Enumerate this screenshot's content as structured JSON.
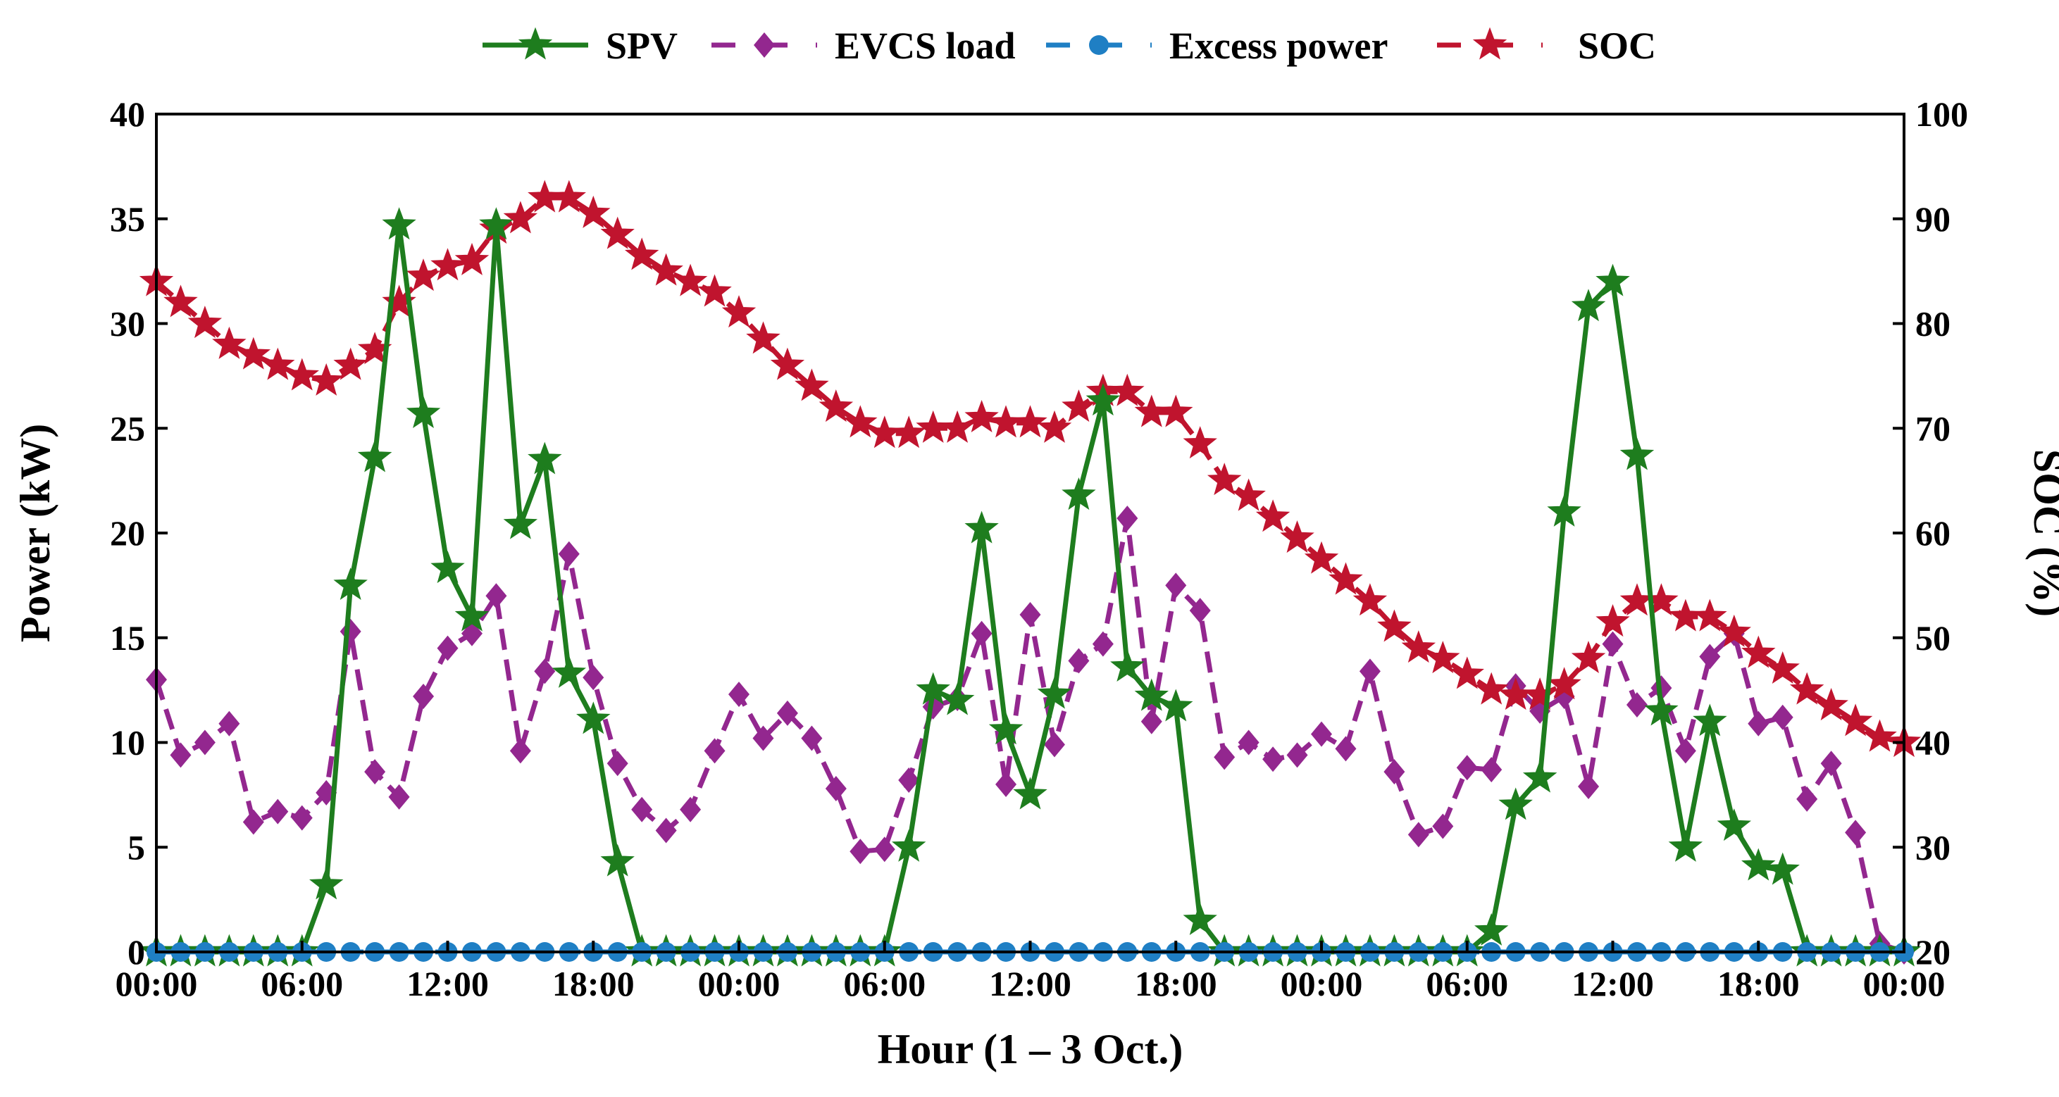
{
  "chart_data": {
    "type": "line",
    "title": "",
    "xlabel": "Hour (1 – 3 Oct.)",
    "ylabel": "Power (kW)",
    "y2label": "SOC (%)",
    "xlim": [
      0,
      72
    ],
    "ylim": [
      0,
      40
    ],
    "y2lim": [
      20,
      100
    ],
    "x_tick_labels": [
      "00:00",
      "06:00",
      "12:00",
      "18:00",
      "00:00",
      "06:00",
      "12:00",
      "18:00",
      "00:00",
      "06:00",
      "12:00",
      "18:00",
      "00:00"
    ],
    "x_tick_positions": [
      0,
      6,
      12,
      18,
      24,
      30,
      36,
      42,
      48,
      54,
      60,
      66,
      72
    ],
    "y_tick_labels": [
      "0",
      "5",
      "10",
      "15",
      "20",
      "25",
      "30",
      "35",
      "40"
    ],
    "y_tick_values": [
      0,
      5,
      10,
      15,
      20,
      25,
      30,
      35,
      40
    ],
    "y2_tick_labels": [
      "20",
      "30",
      "40",
      "50",
      "60",
      "70",
      "80",
      "90",
      "100"
    ],
    "y2_tick_values": [
      20,
      30,
      40,
      50,
      60,
      70,
      80,
      90,
      100
    ],
    "grid": false,
    "legend_position": "top-center",
    "x": [
      0,
      1,
      2,
      3,
      4,
      5,
      6,
      7,
      8,
      9,
      10,
      11,
      12,
      13,
      14,
      15,
      16,
      17,
      18,
      19,
      20,
      21,
      22,
      23,
      24,
      25,
      26,
      27,
      28,
      29,
      30,
      31,
      32,
      33,
      34,
      35,
      36,
      37,
      38,
      39,
      40,
      41,
      42,
      43,
      44,
      45,
      46,
      47,
      48,
      49,
      50,
      51,
      52,
      53,
      54,
      55,
      56,
      57,
      58,
      59,
      60,
      61,
      62,
      63,
      64,
      65,
      66,
      67,
      68,
      69,
      70,
      71,
      72
    ],
    "series": [
      {
        "name": "SPV",
        "axis": "left",
        "color": "#1e7d1e",
        "style": "solid",
        "marker": "star",
        "values": [
          0,
          0,
          0,
          0,
          0,
          0,
          0,
          3.2,
          17.5,
          23.6,
          34.7,
          25.7,
          18.3,
          16,
          34.7,
          20.4,
          23.5,
          13.3,
          11.1,
          4.3,
          0,
          0,
          0,
          0,
          0,
          0,
          0,
          0,
          0,
          0,
          0,
          5,
          12.5,
          12,
          20.2,
          10.6,
          7.5,
          12.3,
          21.8,
          26.3,
          13.6,
          12.2,
          11.7,
          1.5,
          0,
          0,
          0,
          0,
          0,
          0,
          0,
          0,
          0,
          0,
          0,
          1,
          7,
          8.3,
          21,
          30.8,
          32,
          23.7,
          11.5,
          5,
          11,
          6,
          4.1,
          3.9,
          0,
          0,
          0,
          0,
          0
        ]
      },
      {
        "name": "EVCS load",
        "axis": "left",
        "color": "#93278f",
        "style": "dashed",
        "marker": "diamond",
        "values": [
          13,
          9.4,
          10,
          10.9,
          6.2,
          6.7,
          6.4,
          7.6,
          15.3,
          8.6,
          7.4,
          12.2,
          14.5,
          15.2,
          17,
          9.6,
          13.4,
          19,
          13.1,
          9,
          6.8,
          5.8,
          6.8,
          9.6,
          12.3,
          10.2,
          11.4,
          10.2,
          7.8,
          4.8,
          4.9,
          8.2,
          11.7,
          12.1,
          15.2,
          8,
          16.1,
          9.9,
          13.9,
          14.7,
          20.7,
          11,
          17.5,
          16.3,
          9.3,
          10,
          9.2,
          9.4,
          10.4,
          9.7,
          13.4,
          8.6,
          5.6,
          6,
          8.8,
          8.7,
          12.7,
          11.5,
          12.2,
          7.9,
          14.7,
          11.8,
          12.6,
          9.6,
          14.1,
          15.2,
          10.9,
          11.2,
          7.3,
          9,
          5.7,
          0.4,
          0
        ]
      },
      {
        "name": "Excess power",
        "axis": "left",
        "color": "#1f7fc4",
        "style": "dashed",
        "marker": "circle",
        "values": [
          0,
          0,
          0,
          0,
          0,
          0,
          0,
          0,
          0,
          0,
          0,
          0,
          0,
          0,
          0,
          0,
          0,
          0,
          0,
          0,
          0,
          0,
          0,
          0,
          0,
          0,
          0,
          0,
          0,
          0,
          0,
          0,
          0,
          0,
          0,
          0,
          0,
          0,
          0,
          0,
          0,
          0,
          0,
          0,
          0,
          0,
          0,
          0,
          0,
          0,
          0,
          0,
          0,
          0,
          0,
          0,
          0,
          0,
          0,
          0,
          0,
          0,
          0,
          0,
          0,
          0,
          0,
          0,
          0,
          0,
          0,
          0,
          0
        ]
      },
      {
        "name": "SOC",
        "axis": "right",
        "color": "#c0142e",
        "style": "dashed",
        "marker": "star",
        "values": [
          84,
          82,
          80,
          78,
          77,
          76,
          75,
          74.5,
          76,
          77.5,
          82,
          84.5,
          85.5,
          86,
          89,
          90,
          92,
          92,
          90.5,
          88.5,
          86.5,
          85,
          84,
          83,
          81,
          78.5,
          76,
          74,
          72,
          70.5,
          69.5,
          69.5,
          70,
          70,
          71,
          70.5,
          70.5,
          70,
          72,
          73.5,
          73.5,
          71.5,
          71.5,
          68.5,
          65,
          63.5,
          61.5,
          59.5,
          57.5,
          55.5,
          53.5,
          51,
          49,
          48,
          46.5,
          45,
          44.5,
          44.5,
          45.5,
          48,
          51.5,
          53.5,
          53.5,
          52,
          52,
          50.5,
          48.5,
          47,
          45,
          43.5,
          42,
          40.5,
          40
        ]
      }
    ]
  }
}
